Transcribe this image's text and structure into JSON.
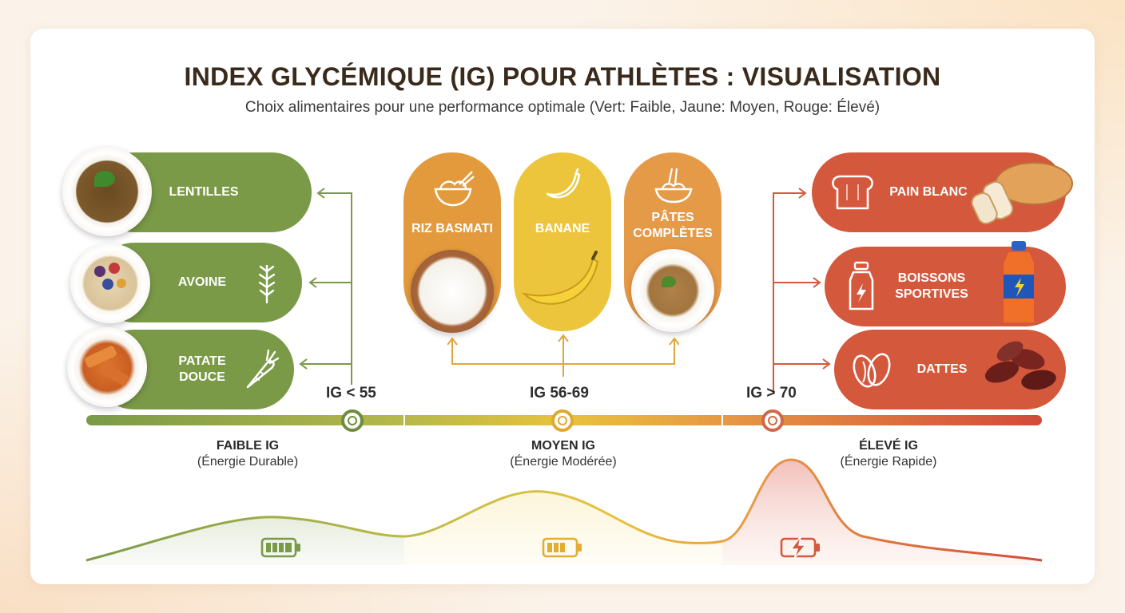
{
  "title": "INDEX GLYCÉMIQUE (IG) POUR ATHLÈTES : VISUALISATION",
  "subtitle": "Choix alimentaires pour une performance optimale (Vert: Faible, Jaune: Moyen, Rouge: Élevé)",
  "low": {
    "color": "#7a9a48",
    "threshold": "IG < 55",
    "band_title": "FAIBLE IG",
    "band_sub": "(Énergie Durable)",
    "items": [
      {
        "label": "LENTILLES",
        "icon": "pea-pod-icon"
      },
      {
        "label": "AVOINE",
        "icon": "wheat-icon"
      },
      {
        "label": "PATATE\nDOUCE",
        "icon": "sweet-potato-icon"
      }
    ]
  },
  "medium": {
    "color": "#e8b830",
    "threshold": "IG 56-69",
    "band_title": "MOYEN IG",
    "band_sub": "(Énergie Modérée)",
    "items": [
      {
        "label": "RIZ BASMATI",
        "icon": "rice-bowl-icon"
      },
      {
        "label": "BANANE",
        "icon": "banana-icon"
      },
      {
        "label": "PÂTES\nCOMPLÈTES",
        "icon": "pasta-icon"
      }
    ]
  },
  "high": {
    "color": "#d4583c",
    "threshold": "IG > 70",
    "band_title": "ÉLEVÉ IG",
    "band_sub": "(Énergie Rapide)",
    "items": [
      {
        "label": "PAIN BLANC",
        "icon": "bread-icon"
      },
      {
        "label": "BOISSONS\nSPORTIVES",
        "icon": "bottle-icon"
      },
      {
        "label": "DATTES",
        "icon": "dates-icon"
      }
    ]
  },
  "battery_icons": [
    "battery-full-icon",
    "battery-half-icon",
    "battery-charging-icon"
  ]
}
